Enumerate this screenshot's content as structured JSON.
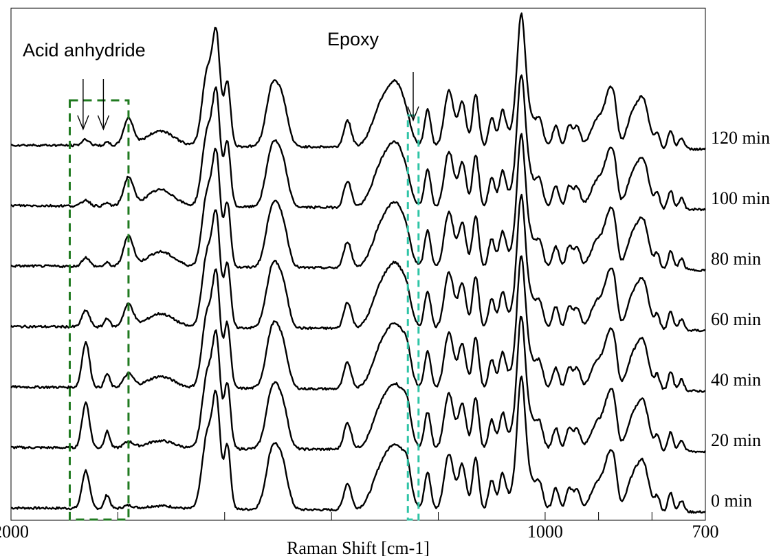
{
  "chart_data": {
    "type": "line",
    "title": "",
    "xlabel": "Raman Shift [cm-1]",
    "ylabel": "",
    "xlim": [
      2000,
      700
    ],
    "x_reversed": true,
    "x_tick_values": [
      2000,
      1900,
      1800,
      1700,
      1600,
      1500,
      1400,
      1300,
      1200,
      1100,
      1000,
      900,
      800,
      700
    ],
    "x_tick_labels": [
      "2000",
      "1000",
      "700"
    ],
    "grid": false,
    "legend": "none",
    "line_color": "#000000",
    "annotations": {
      "acid_label": "Acid anhydride",
      "acid_range": [
        1890,
        1780
      ],
      "acid_color": "#1f7a1f",
      "acid_arrows": [
        1865,
        1827
      ],
      "epoxy_label": "Epoxy",
      "epoxy_range": [
        1257,
        1237
      ],
      "epoxy_color": "#2fc4a6",
      "epoxy_arrow": 1247
    },
    "peaks": [
      [
        1860,
        0,
        28
      ],
      [
        1820,
        0,
        12
      ],
      [
        1780,
        0,
        0
      ],
      [
        1720,
        0,
        0
      ],
      [
        1632,
        1.0,
        10
      ],
      [
        1615,
        1.3,
        7
      ],
      [
        1595,
        0.85,
        6
      ],
      [
        1510,
        0.8,
        12
      ],
      [
        1490,
        0.45,
        10
      ],
      [
        1370,
        0.35,
        7
      ],
      [
        1305,
        0.55,
        18
      ],
      [
        1275,
        0.7,
        16
      ],
      [
        1258,
        0.3,
        7
      ],
      [
        1220,
        0.5,
        6
      ],
      [
        1180,
        0.75,
        9
      ],
      [
        1155,
        0.6,
        7
      ],
      [
        1130,
        0.7,
        6
      ],
      [
        1100,
        0.4,
        6
      ],
      [
        1080,
        0.45,
        6
      ],
      [
        1045,
        1.2,
        7
      ],
      [
        1040,
        0.6,
        18
      ],
      [
        1010,
        0.25,
        6
      ],
      [
        980,
        0.3,
        6
      ],
      [
        955,
        0.3,
        6
      ],
      [
        940,
        0.28,
        6
      ],
      [
        900,
        0.4,
        14
      ],
      [
        880,
        0.55,
        8
      ],
      [
        870,
        0.4,
        6
      ],
      [
        835,
        0.45,
        12
      ],
      [
        815,
        0.55,
        10
      ],
      [
        790,
        0.2,
        5
      ],
      [
        765,
        0.25,
        5
      ],
      [
        745,
        0.15,
        5
      ]
    ],
    "series": [
      {
        "name": "0 min",
        "acid_1860": 0.5,
        "acid_1820": 0.18,
        "acid_1780": 0.04,
        "acid_1720": 0.04,
        "epoxy_1258": 0.3
      },
      {
        "name": "20 min",
        "acid_1860": 0.6,
        "acid_1820": 0.22,
        "acid_1780": 0.08,
        "acid_1720": 0.1,
        "epoxy_1258": 0.28
      },
      {
        "name": "40 min",
        "acid_1860": 0.6,
        "acid_1820": 0.18,
        "acid_1780": 0.18,
        "acid_1720": 0.15,
        "epoxy_1258": 0.24
      },
      {
        "name": "60 min",
        "acid_1860": 0.22,
        "acid_1820": 0.12,
        "acid_1780": 0.3,
        "acid_1720": 0.18,
        "epoxy_1258": 0.18
      },
      {
        "name": "80 min",
        "acid_1860": 0.12,
        "acid_1820": 0.05,
        "acid_1780": 0.4,
        "acid_1720": 0.2,
        "epoxy_1258": 0.12
      },
      {
        "name": "100 min",
        "acid_1860": 0.08,
        "acid_1820": 0.04,
        "acid_1780": 0.38,
        "acid_1720": 0.22,
        "epoxy_1258": 0.08
      },
      {
        "name": "120 min",
        "acid_1860": 0.08,
        "acid_1820": 0.04,
        "acid_1780": 0.36,
        "acid_1720": 0.2,
        "epoxy_1258": 0.06
      }
    ]
  }
}
